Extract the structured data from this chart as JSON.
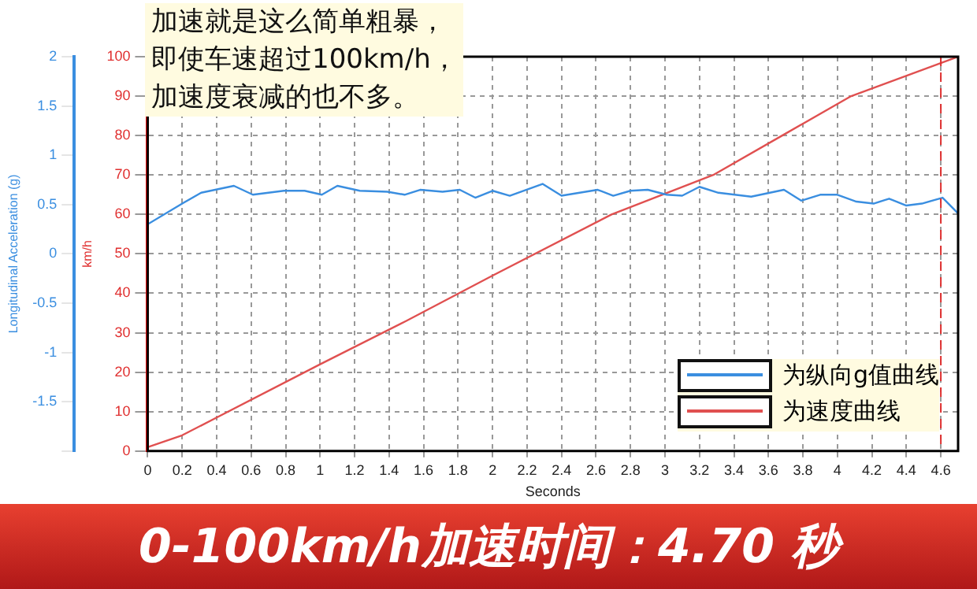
{
  "chart_data": {
    "type": "line",
    "xlabel": "Seconds",
    "ylabel": "km/h",
    "y2label": "Longitudinal Acceleration (g)",
    "annotations": [
      "加速就是这么简单粗暴，",
      "即使车速超过100km/h，",
      "加速度衰减的也不多。",
      "0-100km/h加速时间：4.70 秒"
    ],
    "series": [
      {
        "name": "为纵向g值曲线",
        "color": "#3a8ee0",
        "axis": "y2",
        "x": [
          0,
          0.21,
          0.31,
          0.5,
          0.61,
          0.79,
          0.91,
          1.01,
          1.1,
          1.23,
          1.39,
          1.49,
          1.58,
          1.71,
          1.81,
          1.9,
          2.0,
          2.1,
          2.29,
          2.4,
          2.61,
          2.7,
          2.8,
          2.9,
          3.01,
          3.1,
          3.2,
          3.31,
          3.5,
          3.69,
          3.79,
          3.9,
          4.0,
          4.11,
          4.21,
          4.3,
          4.4,
          4.49,
          4.61,
          4.7
        ],
        "values": [
          0.3,
          0.52,
          0.62,
          0.69,
          0.6,
          0.64,
          0.64,
          0.6,
          0.69,
          0.64,
          0.63,
          0.6,
          0.65,
          0.63,
          0.65,
          0.57,
          0.64,
          0.59,
          0.71,
          0.59,
          0.65,
          0.59,
          0.64,
          0.65,
          0.6,
          0.59,
          0.68,
          0.62,
          0.58,
          0.65,
          0.54,
          0.6,
          0.6,
          0.53,
          0.51,
          0.56,
          0.49,
          0.51,
          0.57,
          0.41
        ]
      },
      {
        "name": "为速度曲线",
        "color": "#e05050",
        "x": [
          0,
          0.2,
          0.4,
          1.0,
          1.5,
          2.0,
          2.69,
          3.28,
          3.68,
          4.08,
          4.7
        ],
        "values": [
          1,
          4,
          8.5,
          22,
          33,
          44.5,
          60,
          70,
          80,
          90,
          100
        ]
      }
    ],
    "xlim": [
      0,
      4.7
    ],
    "xticks": [
      0,
      0.2,
      0.4,
      0.6,
      0.8,
      1,
      1.2,
      1.4,
      1.6,
      1.8,
      2,
      2.2,
      2.4,
      2.6,
      2.8,
      3,
      3.2,
      3.4,
      3.6,
      3.8,
      4,
      4.2,
      4.4,
      4.6
    ],
    "ylim": [
      0,
      100
    ],
    "yticks": [
      0,
      10,
      20,
      30,
      40,
      50,
      60,
      70,
      80,
      90,
      100
    ],
    "y2lim": [
      -2,
      2
    ],
    "y2ticks": [
      {
        "value": -2,
        "label": null
      },
      -1.5,
      -1,
      -0.5,
      0,
      0.5,
      1,
      1.5,
      2
    ],
    "ref_lines": [
      {
        "axis": "x",
        "value": 4.6,
        "color": "#e03030",
        "line_style": "dashed"
      }
    ],
    "grid": true,
    "legend": "bottom right",
    "marker": "none",
    "line_style": "solid"
  }
}
